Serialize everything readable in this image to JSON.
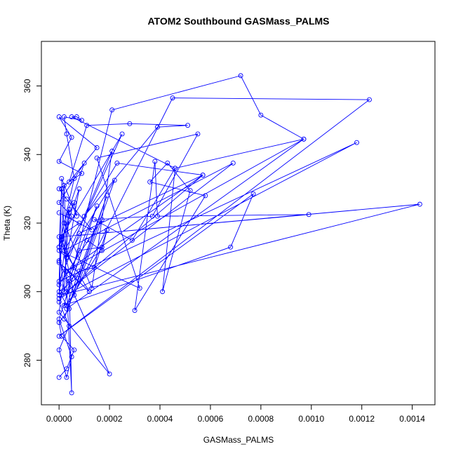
{
  "chart_data": {
    "type": "line",
    "title": "ATOM2 Southbound GASMass_PALMS",
    "xlabel": "GASMass_PALMS",
    "ylabel": "Theta (K)",
    "xlim": [
      -7e-05,
      0.00149
    ],
    "ylim": [
      267,
      373
    ],
    "xticks": [
      0.0,
      0.0002,
      0.0004,
      0.0006,
      0.0008,
      0.001,
      0.0012,
      0.0014
    ],
    "xtick_labels": [
      "0.0000",
      "0.0002",
      "0.0004",
      "0.0006",
      "0.0008",
      "0.0010",
      "0.0012",
      "0.0014"
    ],
    "yticks": [
      280,
      300,
      320,
      340,
      360
    ],
    "ytick_labels": [
      "280",
      "300",
      "320",
      "340",
      "360"
    ],
    "grid": false,
    "color": "#0000ff",
    "series": [
      {
        "points": [
          [
            0.0,
            275.0
          ],
          [
            3e-05,
            277.5
          ],
          [
            6e-05,
            283.0
          ],
          [
            1e-05,
            287.0
          ],
          [
            0.0,
            291.0
          ],
          [
            4e-05,
            295.0
          ],
          [
            0.0,
            300.0
          ],
          [
            7e-05,
            304.0
          ],
          [
            0.0,
            308.5
          ],
          [
            0.00012,
            300.0
          ],
          [
            2e-05,
            312.0
          ],
          [
            0.0,
            316.0
          ],
          [
            8e-05,
            320.0
          ],
          [
            0.0,
            323.0
          ],
          [
            0.00013,
            318.0
          ],
          [
            3e-05,
            327.0
          ],
          [
            0.0,
            330.0
          ],
          [
            9e-05,
            334.5
          ],
          [
            0.0,
            338.0
          ],
          [
            5e-05,
            345.0
          ],
          [
            0.0,
            351.0
          ],
          [
            0.00015,
            342.0
          ],
          [
            4e-05,
            332.0
          ],
          [
            0.00011,
            348.5
          ],
          [
            0.00028,
            349.0
          ],
          [
            0.00051,
            348.5
          ],
          [
            0.00039,
            348.0
          ],
          [
            0.0001,
            322.0
          ],
          [
            0.00021,
            341.0
          ],
          [
            0.00013,
            301.0
          ],
          [
            2e-05,
            320.0
          ],
          [
            0.0001,
            337.5
          ],
          [
            0.0,
            326.0
          ],
          [
            5e-05,
            322.0
          ],
          [
            1e-05,
            315.0
          ],
          [
            6e-05,
            307.0
          ],
          [
            0.0,
            297.0
          ],
          [
            4e-05,
            290.0
          ],
          [
            0.0,
            283.0
          ],
          [
            3e-05,
            275.0
          ],
          [
            5e-05,
            281.0
          ],
          [
            0.0,
            292.0
          ],
          [
            0.00015,
            325.0
          ],
          [
            4e-05,
            305.0
          ],
          [
            8e-05,
            312.0
          ],
          [
            0.00017,
            313.0
          ],
          [
            3e-05,
            296.0
          ],
          [
            0.00019,
            328.0
          ],
          [
            2e-05,
            292.0
          ],
          [
            0.00022,
            332.5
          ],
          [
            3e-05,
            310.0
          ],
          [
            0.00025,
            346.0
          ],
          [
            1e-05,
            316.0
          ],
          [
            6e-05,
            299.0
          ],
          [
            0.00017,
            321.0
          ],
          [
            0.0,
            302.0
          ],
          [
            1e-05,
            330.0
          ],
          [
            0.0,
            313.0
          ],
          [
            2e-05,
            300.0
          ],
          [
            4e-05,
            324.0
          ],
          [
            0.0,
            309.0
          ],
          [
            0.0002,
            276.0
          ],
          [
            0.0,
            294.0
          ],
          [
            3e-05,
            310.0
          ],
          [
            0.0,
            312.0
          ],
          [
            0.00032,
            301.0
          ],
          [
            0.00015,
            339.0
          ],
          [
            0.00055,
            346.0
          ],
          [
            0.00037,
            322.0
          ],
          [
            0.00014,
            321.0
          ],
          [
            0.00029,
            315.0
          ],
          [
            0.00046,
            336.0
          ],
          [
            0.00041,
            300.0
          ],
          [
            0.00052,
            329.5
          ],
          [
            0.00043,
            337.5
          ],
          [
            0.00036,
            332.0
          ],
          [
            0.00058,
            328.0
          ],
          [
            0.0003,
            294.5
          ],
          [
            0.00038,
            338.0
          ],
          [
            0.00039,
            322.0
          ],
          [
            0.00099,
            322.5
          ],
          [
            1e-05,
            316.0
          ],
          [
            0.00143,
            325.5
          ],
          [
            1e-05,
            299.0
          ],
          [
            0.0,
            298.0
          ],
          [
            0.00118,
            343.5
          ],
          [
            0.0,
            303.0
          ],
          [
            8e-05,
            317.0
          ],
          [
            0.00057,
            334.0
          ],
          [
            3e-05,
            300.0
          ],
          [
            0.00069,
            337.5
          ],
          [
            2e-05,
            312.0
          ],
          [
            0.00023,
            337.5
          ],
          [
            0.00057,
            334.0
          ],
          [
            3e-05,
            306.0
          ],
          [
            0.00097,
            344.5
          ],
          [
            3e-05,
            295.0
          ],
          [
            0.00045,
            356.5
          ],
          [
            0.00123,
            356.0
          ],
          [
            0.0,
            287.0
          ],
          [
            0.00077,
            328.5
          ],
          [
            0.00068,
            313.0
          ],
          [
            2e-05,
            296.0
          ],
          [
            0.00021,
            353.0
          ],
          [
            0.00072,
            363.0
          ],
          [
            0.0008,
            351.5
          ],
          [
            0.00097,
            344.5
          ],
          [
            0.00046,
            336.0
          ],
          [
            5e-05,
            351.0
          ],
          [
            7e-05,
            351.0
          ],
          [
            9e-05,
            350.0
          ],
          [
            2e-05,
            351.0
          ],
          [
            3e-05,
            346.0
          ],
          [
            6e-05,
            333.0
          ],
          [
            0.0,
            313.0
          ],
          [
            8e-05,
            330.0
          ],
          [
            3e-05,
            310.0
          ],
          [
            2e-05,
            331.0
          ],
          [
            0.0,
            299.0
          ],
          [
            4e-05,
            323.0
          ],
          [
            6e-05,
            326.0
          ],
          [
            7e-05,
            322.0
          ],
          [
            1e-05,
            333.0
          ],
          [
            5e-05,
            270.5
          ],
          [
            4e-05,
            303.0
          ],
          [
            8e-05,
            306.0
          ],
          [
            0.00014,
            307.0
          ],
          [
            0.00019,
            318.0
          ],
          [
            0.00017,
            312.0
          ],
          [
            0.00011,
            315.0
          ]
        ]
      }
    ]
  }
}
